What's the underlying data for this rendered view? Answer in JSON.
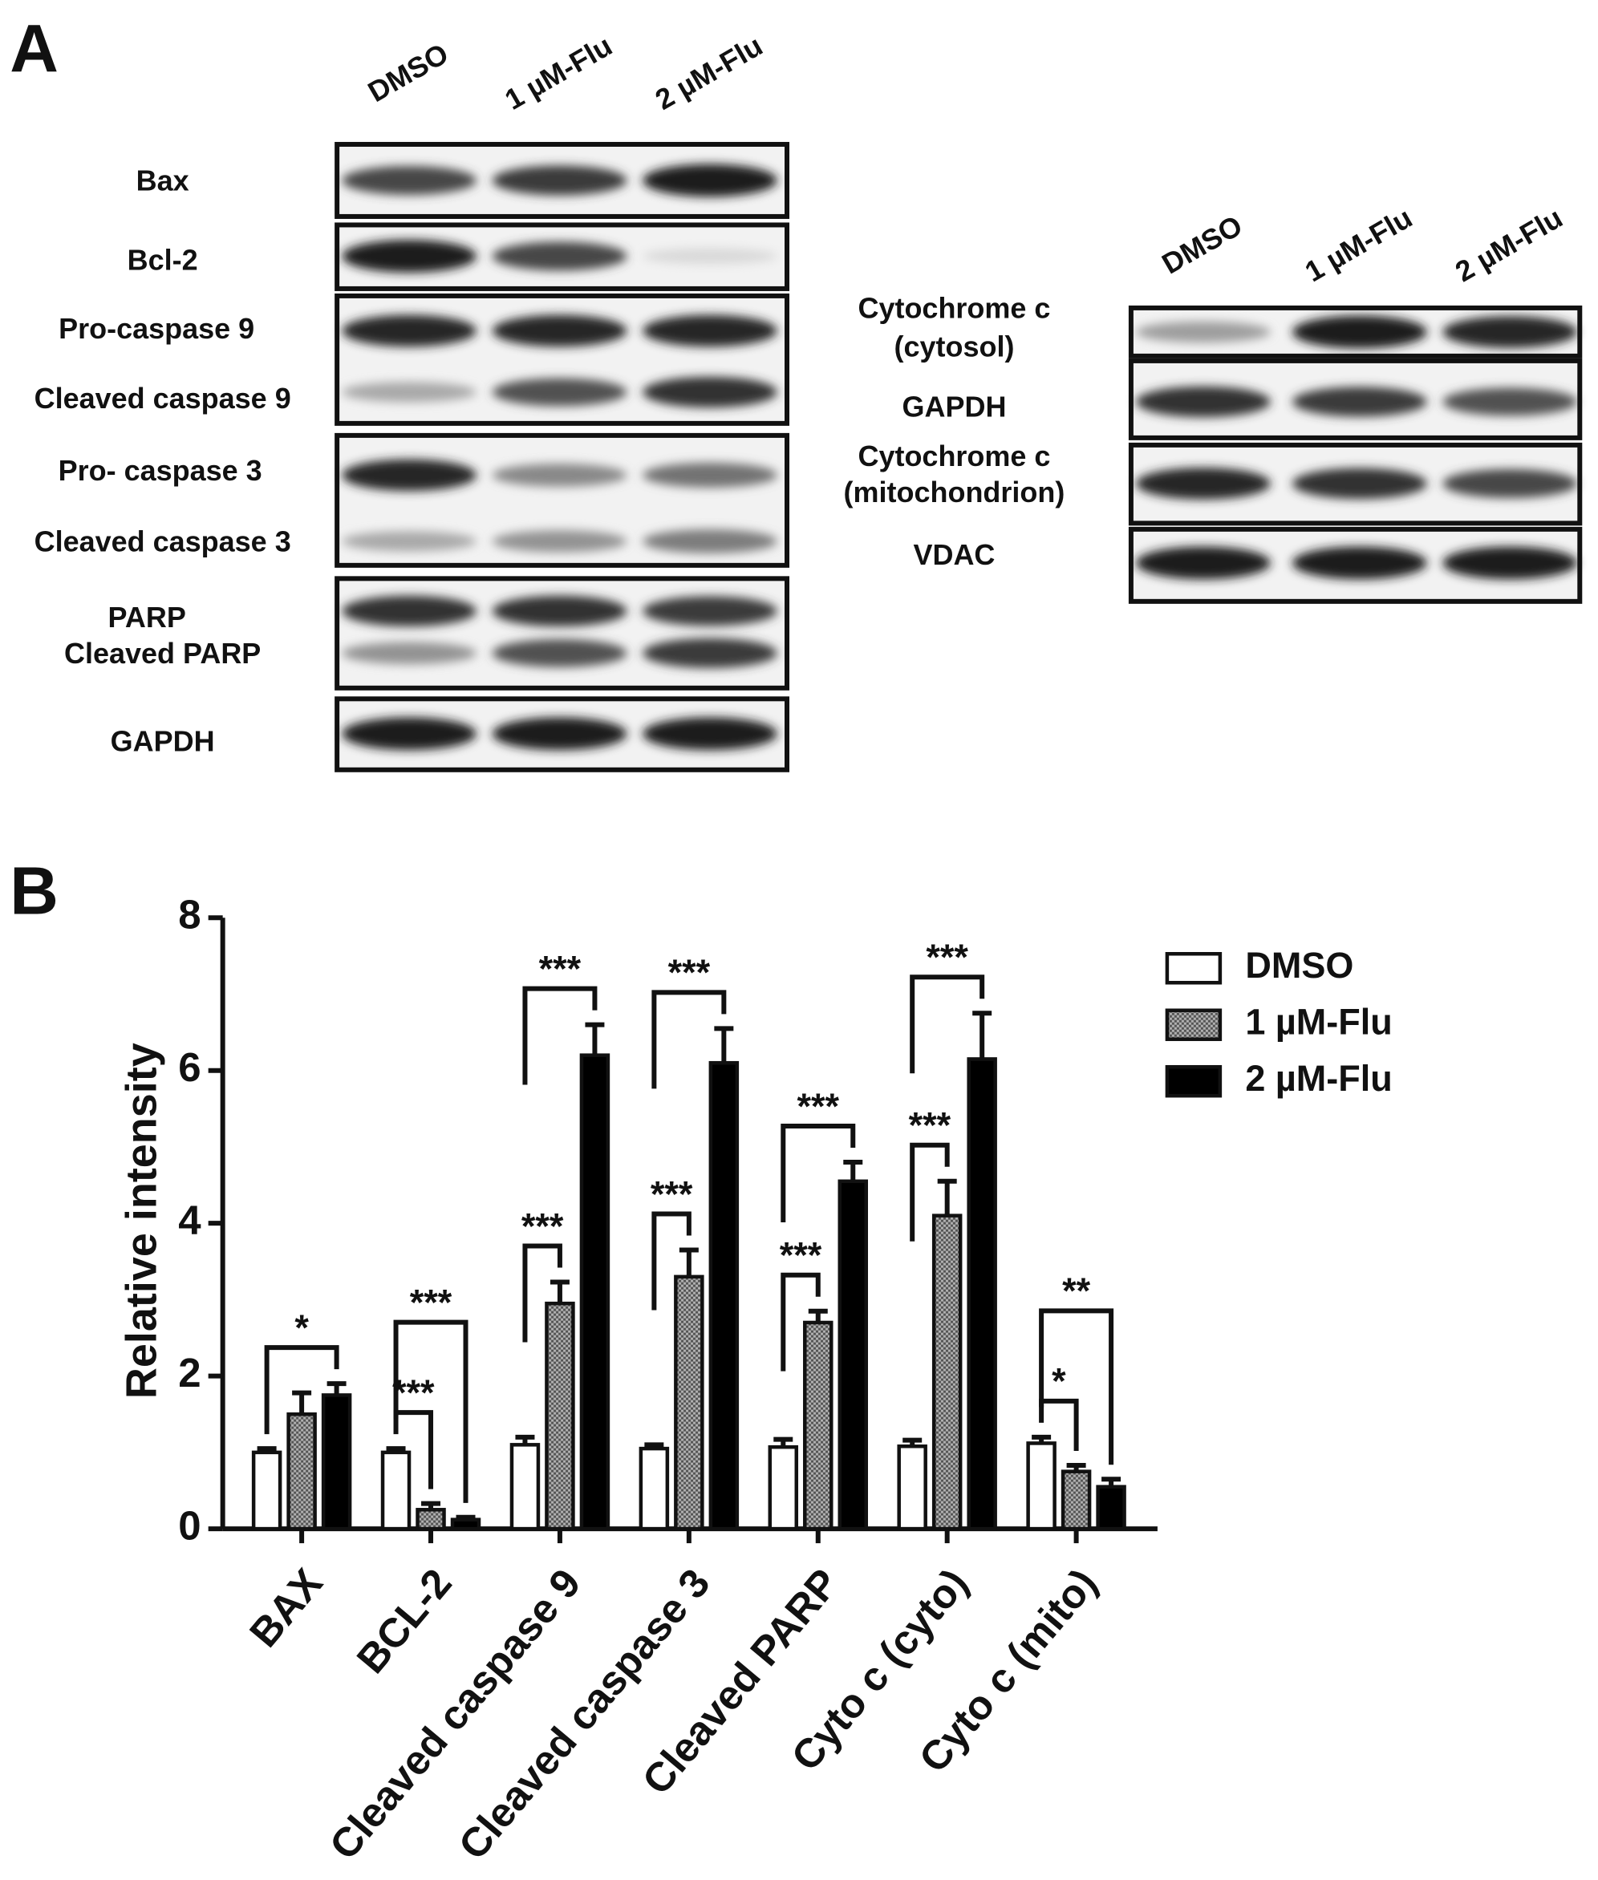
{
  "panel_a": {
    "label": "A",
    "left_blot": {
      "lanes": [
        "DMSO",
        "1 µM-Flu",
        "2 µM-Flu"
      ],
      "rows": [
        "Bax",
        "Bcl-2",
        "Pro-caspase 9",
        "Cleaved caspase 9",
        "Pro- caspase 3",
        "Cleaved caspase 3",
        "PARP",
        "Cleaved PARP",
        "GAPDH"
      ]
    },
    "right_blot": {
      "lanes": [
        "DMSO",
        "1 µM-Flu",
        "2 µM-Flu"
      ],
      "rows": [
        "Cytochrome c",
        "(cytosol)",
        "GAPDH",
        "Cytochrome c",
        "(mitochondrion)",
        "VDAC"
      ]
    }
  },
  "chart_data": {
    "type": "bar",
    "label": "B",
    "y_label": "Relative intensity",
    "categories": [
      "BAX",
      "BCL-2",
      "Cleaved caspase 9",
      "Cleaved caspase 3",
      "Cleaved PARP",
      "Cyto c (cyto)",
      "Cyto c (mito)"
    ],
    "series": [
      {
        "name": "DMSO",
        "color": "#ffffff",
        "values": [
          1.0,
          1.0,
          1.1,
          1.05,
          1.07,
          1.08,
          1.12
        ],
        "errors": [
          0.05,
          0.05,
          0.1,
          0.05,
          0.1,
          0.08,
          0.08
        ]
      },
      {
        "name": "1 µM-Flu",
        "color": "#9a9a9a",
        "values": [
          1.5,
          0.25,
          2.95,
          3.3,
          2.7,
          4.1,
          0.75
        ],
        "errors": [
          0.28,
          0.08,
          0.28,
          0.35,
          0.15,
          0.45,
          0.08
        ]
      },
      {
        "name": "2 µM-Flu",
        "color": "#000000",
        "values": [
          1.75,
          0.12,
          6.2,
          6.1,
          4.55,
          6.15,
          0.55
        ],
        "errors": [
          0.15,
          0.03,
          0.4,
          0.45,
          0.25,
          0.6,
          0.1
        ]
      }
    ],
    "annotations": [
      {
        "category": "BAX",
        "text": "*",
        "series": [
          "DMSO",
          "2 µM-Flu"
        ]
      },
      {
        "category": "BCL-2",
        "text": "***",
        "series": [
          "DMSO",
          "1 µM-Flu"
        ]
      },
      {
        "category": "BCL-2",
        "text": "***",
        "series": [
          "DMSO",
          "2 µM-Flu"
        ]
      },
      {
        "category": "Cleaved caspase 9",
        "text": "***",
        "series": [
          "DMSO",
          "1 µM-Flu"
        ]
      },
      {
        "category": "Cleaved caspase 9",
        "text": "***",
        "series": [
          "DMSO",
          "2 µM-Flu"
        ]
      },
      {
        "category": "Cleaved caspase 3",
        "text": "***",
        "series": [
          "DMSO",
          "1 µM-Flu"
        ]
      },
      {
        "category": "Cleaved caspase 3",
        "text": "***",
        "series": [
          "DMSO",
          "2 µM-Flu"
        ]
      },
      {
        "category": "Cleaved PARP",
        "text": "***",
        "series": [
          "DMSO",
          "1 µM-Flu"
        ]
      },
      {
        "category": "Cleaved PARP",
        "text": "***",
        "series": [
          "DMSO",
          "2 µM-Flu"
        ]
      },
      {
        "category": "Cyto c (cyto)",
        "text": "***",
        "series": [
          "DMSO",
          "1 µM-Flu"
        ]
      },
      {
        "category": "Cyto c (cyto)",
        "text": "***",
        "series": [
          "DMSO",
          "2 µM-Flu"
        ]
      },
      {
        "category": "Cyto c (mito)",
        "text": "*",
        "series": [
          "DMSO",
          "1 µM-Flu"
        ]
      },
      {
        "category": "Cyto c (mito)",
        "text": "**",
        "series": [
          "DMSO",
          "2 µM-Flu"
        ]
      }
    ],
    "ylim": [
      0,
      8
    ],
    "yticks": [
      0,
      2,
      4,
      6,
      8
    ],
    "legend": "top-right"
  }
}
